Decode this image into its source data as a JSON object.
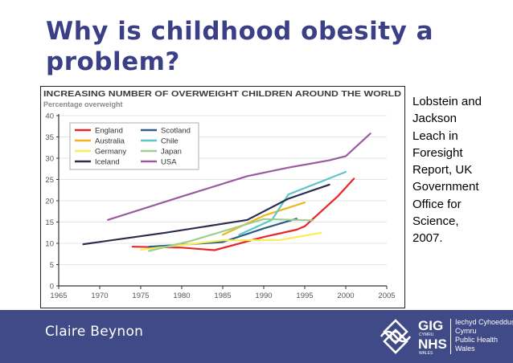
{
  "slide": {
    "title": "Why is childhood obesity a problem?",
    "source_lines": [
      "Lobstein and",
      "Jackson",
      "Leach in",
      "Foresight",
      "Report, UK",
      "Government",
      "Office for",
      "Science,",
      "2007."
    ],
    "presenter": "Claire Beynon"
  },
  "logo": {
    "gig": "GIG",
    "cymru_small": "CYMRU",
    "nhs": "NHS",
    "wales_small": "WALES",
    "lines": [
      "Iechyd Cyhoeddus",
      "Cymru",
      "Public Health",
      "Wales"
    ]
  },
  "chart_data": {
    "type": "line",
    "title": "INCREASING NUMBER OF OVERWEIGHT CHILDREN AROUND THE WORLD",
    "ylabel": "Percentage overweight",
    "xlabel": "",
    "xlim": [
      1965,
      2005
    ],
    "ylim": [
      0,
      40
    ],
    "xticks": [
      1965,
      1970,
      1975,
      1980,
      1985,
      1990,
      1995,
      2000,
      2005
    ],
    "yticks": [
      0,
      5,
      10,
      15,
      20,
      25,
      30,
      35,
      40
    ],
    "legend_position": "top-left",
    "series": [
      {
        "name": "England",
        "color": "#e8262a",
        "x": [
          1974,
          1980,
          1984,
          1990,
          1994,
          1995,
          1999,
          2001
        ],
        "y": [
          9.2,
          9.0,
          8.4,
          11.5,
          13.2,
          14.0,
          21.0,
          25.2
        ]
      },
      {
        "name": "Scotland",
        "color": "#2e5c88",
        "x": [
          1976,
          1985,
          1990,
          1994
        ],
        "y": [
          9.2,
          10.3,
          13.5,
          15.8
        ]
      },
      {
        "name": "Australia",
        "color": "#f2b41c",
        "x": [
          1985,
          1990,
          1995
        ],
        "y": [
          12.0,
          16.5,
          19.6
        ]
      },
      {
        "name": "Chile",
        "color": "#5cc6c9",
        "x": [
          1987,
          1991,
          1993,
          1997,
          2000
        ],
        "y": [
          12.0,
          15.5,
          21.5,
          24.5,
          26.8
        ]
      },
      {
        "name": "Germany",
        "color": "#f8ee53",
        "x": [
          1975,
          1985,
          1992,
          1997
        ],
        "y": [
          8.5,
          10.7,
          10.8,
          12.5
        ]
      },
      {
        "name": "Japan",
        "color": "#9dcf92",
        "x": [
          1976,
          1981,
          1990,
          1996
        ],
        "y": [
          8.2,
          10.5,
          15.7,
          15.4
        ]
      },
      {
        "name": "Iceland",
        "color": "#2b2d4f",
        "x": [
          1968,
          1978,
          1988,
          1993,
          1998
        ],
        "y": [
          9.8,
          12.5,
          15.5,
          20.5,
          23.8
        ]
      },
      {
        "name": "USA",
        "color": "#9b5aa0",
        "x": [
          1971,
          1980,
          1988,
          1993,
          1998,
          2000,
          2003
        ],
        "y": [
          15.5,
          21.0,
          25.8,
          27.8,
          29.5,
          30.5,
          35.8
        ]
      }
    ]
  }
}
